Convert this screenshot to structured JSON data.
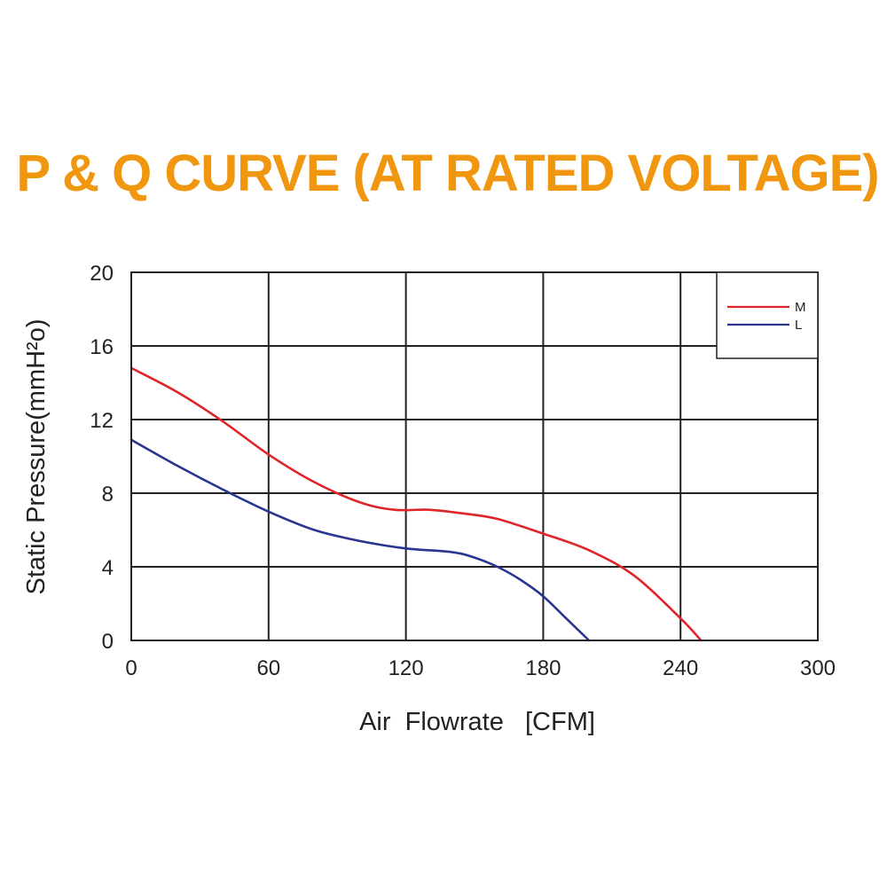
{
  "chart_data": {
    "type": "line",
    "title": "P & Q CURVE (AT RATED VOLTAGE)",
    "xlabel": "Air  Flowrate   [CFM]",
    "ylabel": "Static Pressure(mmH²o)",
    "xlim": [
      0,
      300
    ],
    "ylim": [
      0,
      20
    ],
    "xticks": [
      "0",
      "60",
      "120",
      "180",
      "240",
      "300"
    ],
    "yticks": [
      "0",
      "4",
      "8",
      "12",
      "16",
      "20"
    ],
    "grid": true,
    "legend_position": "top-right",
    "series": [
      {
        "name": "M",
        "color": "#e0252a",
        "x": [
          0,
          20,
          40,
          60,
          80,
          100,
          115,
          130,
          145,
          160,
          180,
          200,
          220,
          240,
          249
        ],
        "y": [
          14.8,
          13.5,
          11.9,
          10.1,
          8.6,
          7.5,
          7.1,
          7.1,
          6.9,
          6.6,
          5.8,
          4.9,
          3.5,
          1.2,
          0
        ]
      },
      {
        "name": "L",
        "color": "#2a3590",
        "x": [
          0,
          20,
          40,
          60,
          80,
          100,
          120,
          140,
          150,
          160,
          170,
          180,
          190,
          200
        ],
        "y": [
          10.9,
          9.5,
          8.2,
          7.0,
          6.0,
          5.4,
          5.0,
          4.8,
          4.5,
          4.0,
          3.3,
          2.4,
          1.2,
          0
        ]
      }
    ]
  }
}
